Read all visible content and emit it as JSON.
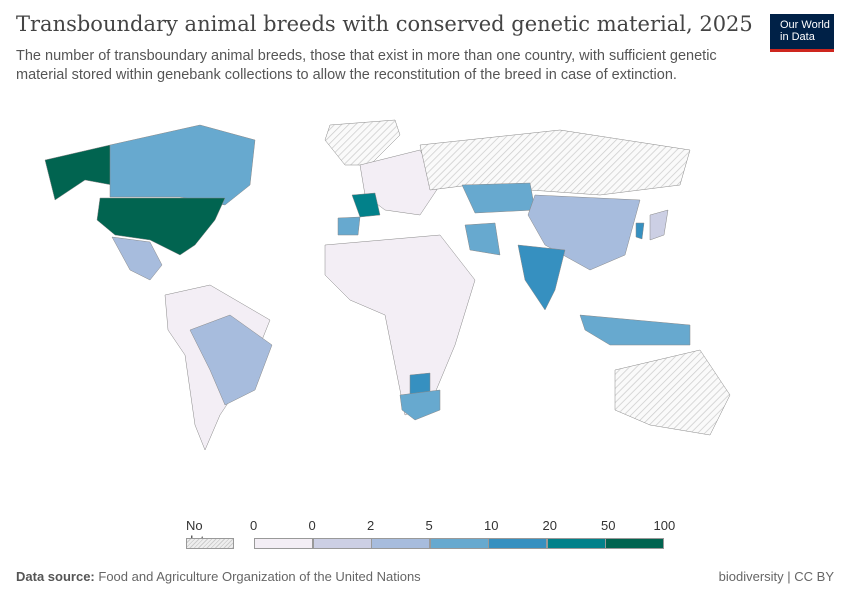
{
  "title": "Transboundary animal breeds with conserved genetic material, 2025",
  "subtitle": "The number of transboundary animal breeds, those that exist in more than one country, with sufficient genetic material stored within genebank collections to allow the reconstitution of the breed in case of extinction.",
  "logo": {
    "line1": "Our World",
    "line2": "in Data"
  },
  "legend": {
    "no_data": "No data",
    "ticks": [
      "0",
      "0",
      "2",
      "5",
      "10",
      "20",
      "50",
      "100"
    ],
    "colors": [
      "#f3eef5",
      "#cccfe4",
      "#a7bcdd",
      "#67a9cf",
      "#3690c0",
      "#02818a",
      "#016450"
    ],
    "no_data_color": "#e8e8e8"
  },
  "map_colors": {
    "usa": "#016450",
    "alaska": "#016450",
    "canada": "#67a9cf",
    "mexico": "#a7bcdd",
    "brazil": "#a7bcdd",
    "south_america_other": "#f3eef5",
    "greenland": "#e8e8e8",
    "france": "#02818a",
    "spain": "#67a9cf",
    "europe_other": "#f3eef5",
    "russia": "#e8e8e8",
    "kazakhstan": "#67a9cf",
    "china": "#a7bcdd",
    "india": "#3690c0",
    "iran": "#67a9cf",
    "africa": "#f3eef5",
    "south_africa": "#67a9cf",
    "botswana": "#3690c0",
    "indonesia": "#67a9cf",
    "australia": "#e8e8e8",
    "korea": "#3690c0",
    "japan": "#cccfe4"
  },
  "footer": {
    "source_label": "Data source:",
    "source": "Food and Agriculture Organization of the United Nations",
    "license": "biodiversity | CC BY"
  }
}
